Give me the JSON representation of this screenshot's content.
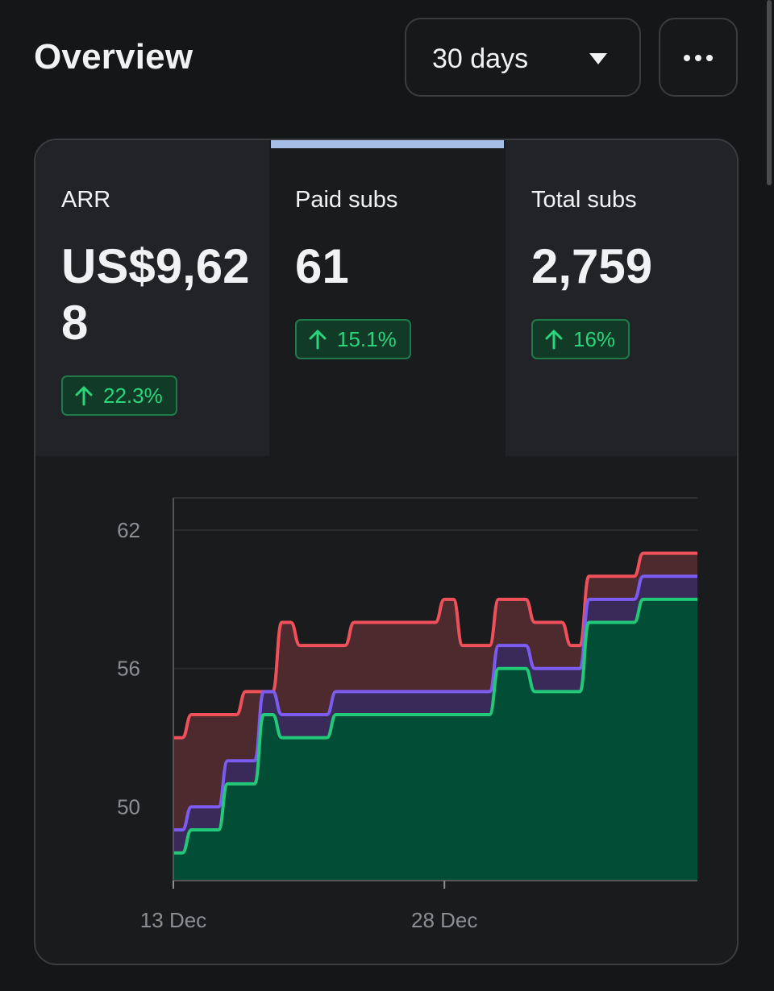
{
  "header": {
    "title": "Overview",
    "period": {
      "selected": "30 days"
    }
  },
  "icons": {
    "period_caret": "caret-down-icon",
    "more": "more-horizontal-icon",
    "trend": "arrow-up-icon"
  },
  "metrics": [
    {
      "label": "ARR",
      "value": "US$9,628",
      "change": "22.3%",
      "direction": "up",
      "active": false
    },
    {
      "label": "Paid subs",
      "value": "61",
      "change": "15.1%",
      "direction": "up",
      "active": true
    },
    {
      "label": "Total subs",
      "value": "2,759",
      "change": "16%",
      "direction": "up",
      "active": false
    }
  ],
  "colors": {
    "accent_active": "#a6bde6",
    "positive": "#29d67c",
    "series_top": "#f0505a",
    "series_mid": "#7c5cf0",
    "series_bottom": "#22c978"
  },
  "chart_data": {
    "type": "area",
    "title": "",
    "xlabel": "",
    "ylabel": "",
    "x_ticks": [
      "13 Dec",
      "28 Dec"
    ],
    "y_ticks": [
      50,
      56,
      62
    ],
    "ylim": [
      46.8,
      63.4
    ],
    "xlim": [
      "13 Dec",
      "11 Jan"
    ],
    "grid": true,
    "x": [
      "13 Dec",
      "14 Dec",
      "15 Dec",
      "16 Dec",
      "17 Dec",
      "18 Dec",
      "19 Dec",
      "20 Dec",
      "21 Dec",
      "22 Dec",
      "23 Dec",
      "24 Dec",
      "25 Dec",
      "26 Dec",
      "27 Dec",
      "28 Dec",
      "29 Dec",
      "30 Dec",
      "31 Dec",
      "1 Jan",
      "2 Jan",
      "3 Jan",
      "4 Jan",
      "5 Jan",
      "6 Jan",
      "7 Jan",
      "8 Jan",
      "9 Jan",
      "10 Jan",
      "11 Jan"
    ],
    "series": [
      {
        "values": [
          48,
          49,
          49,
          51,
          51,
          54,
          53,
          53,
          53,
          54,
          54,
          54,
          54,
          54,
          54,
          54,
          54,
          54,
          56,
          56,
          55,
          55,
          55,
          58,
          58,
          58,
          59,
          59,
          59,
          59
        ]
      },
      {
        "values": [
          49,
          50,
          50,
          52,
          52,
          55,
          54,
          54,
          54,
          55,
          55,
          55,
          55,
          55,
          55,
          55,
          55,
          55,
          57,
          57,
          56,
          56,
          56,
          59,
          59,
          59,
          60,
          60,
          60,
          60
        ]
      },
      {
        "values": [
          53,
          54,
          54,
          54,
          55,
          55,
          58,
          57,
          57,
          57,
          58,
          58,
          58,
          58,
          58,
          59,
          57,
          57,
          59,
          59,
          58,
          58,
          57,
          60,
          60,
          60,
          61,
          61,
          61,
          61
        ]
      }
    ]
  }
}
